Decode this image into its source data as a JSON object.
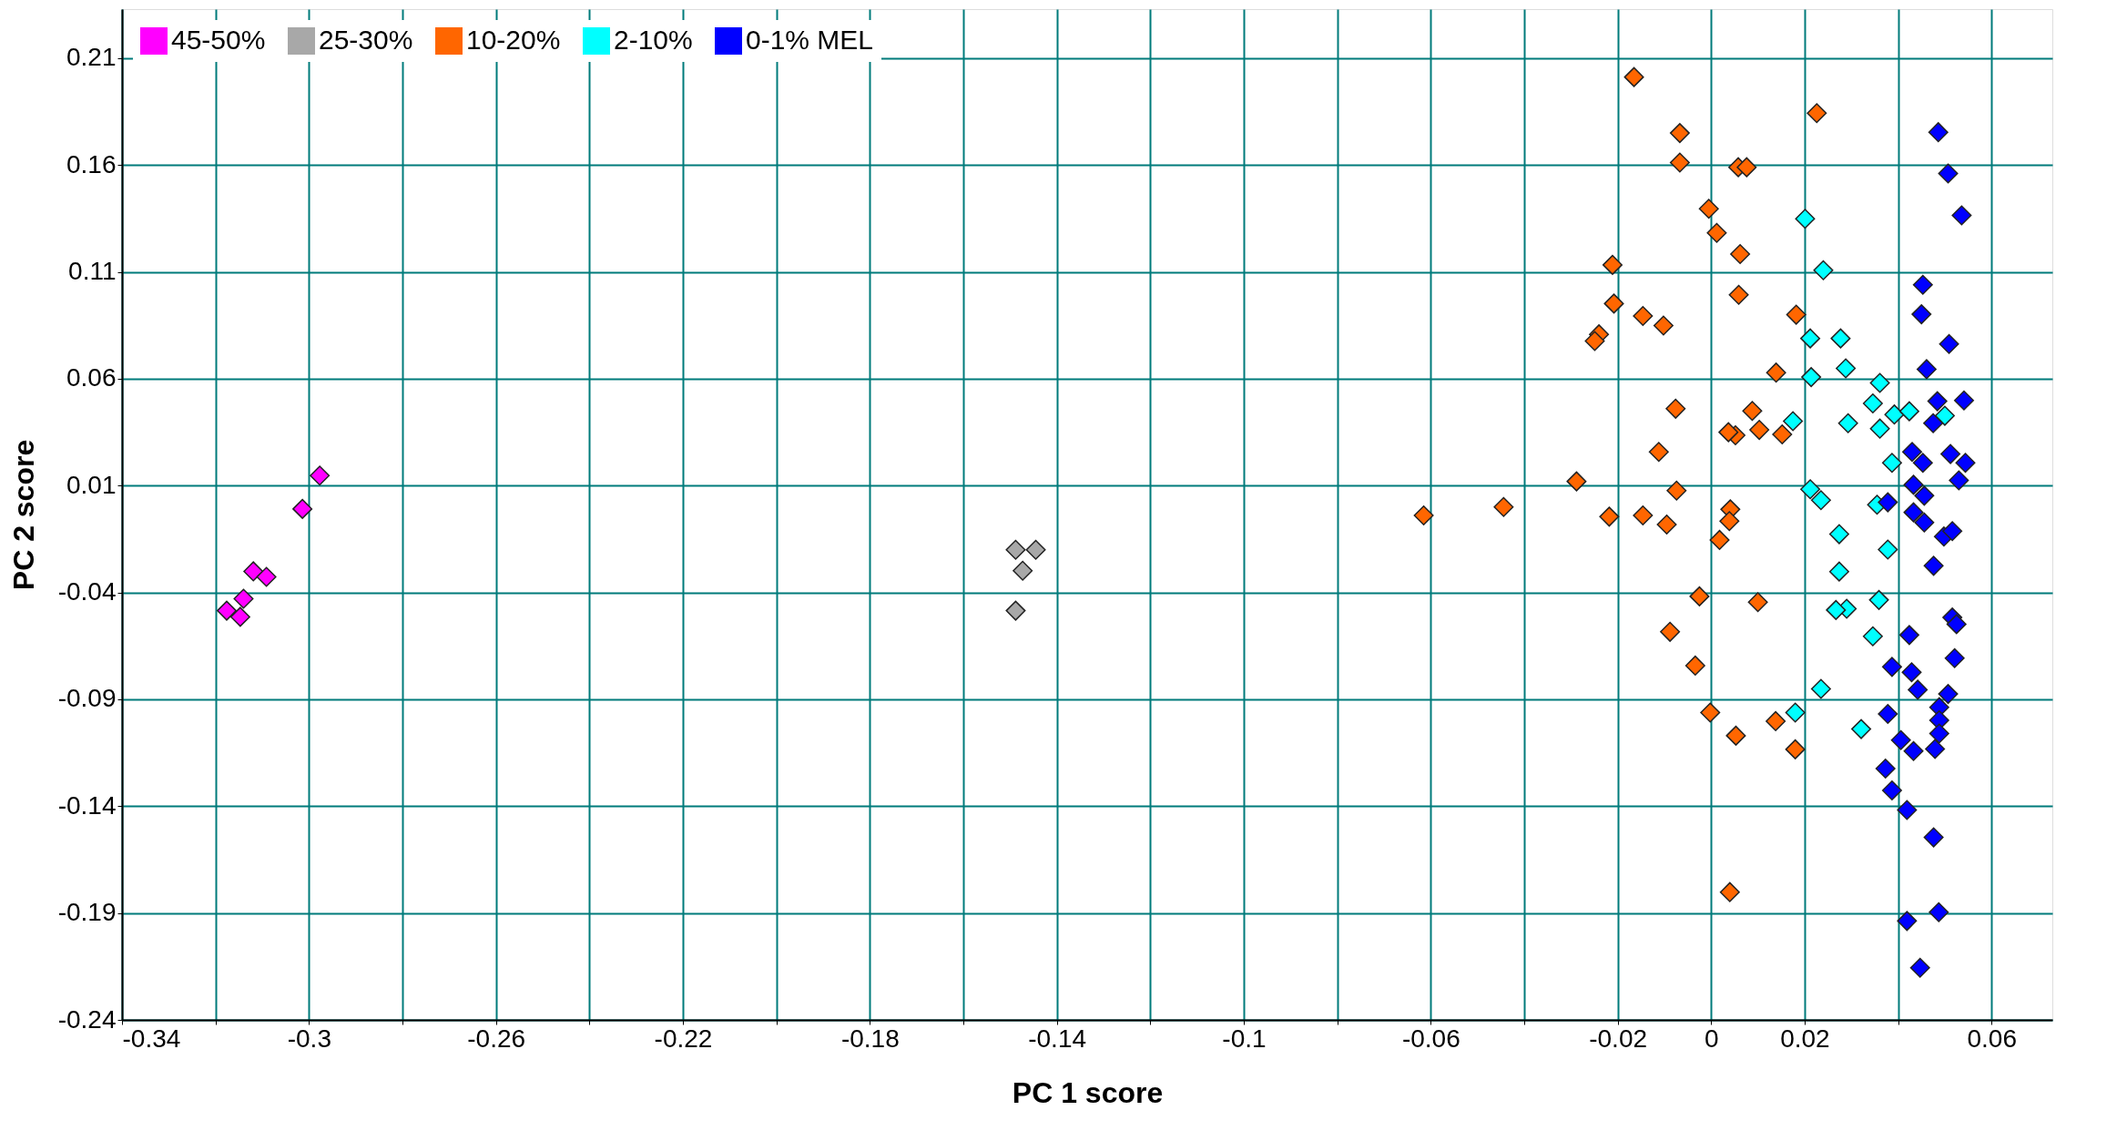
{
  "chart_data": {
    "type": "scatter",
    "xlabel": "PC 1 score",
    "ylabel": "PC 2 score",
    "xlim": [
      -0.34,
      0.073
    ],
    "ylim": [
      -0.24,
      0.233
    ],
    "xticks": [
      -0.34,
      {
        "value": -0.32,
        "label": null
      },
      -0.3,
      {
        "value": -0.28,
        "label": null
      },
      -0.26,
      {
        "value": -0.24,
        "label": null
      },
      -0.22,
      {
        "value": -0.2,
        "label": null
      },
      -0.18,
      {
        "value": -0.16,
        "label": null
      },
      -0.14,
      {
        "value": -0.12,
        "label": null
      },
      -0.1,
      {
        "value": -0.08,
        "label": null
      },
      -0.06,
      {
        "value": -0.04,
        "label": null
      },
      -0.02,
      0,
      0.02,
      {
        "value": 0.04,
        "label": null
      },
      0.06
    ],
    "yticks": [
      0.21,
      0.16,
      0.11,
      0.06,
      0.01,
      -0.04,
      -0.09,
      -0.14,
      -0.19,
      -0.24
    ],
    "grid": true,
    "legend": "top left",
    "marker": "diamond",
    "series": [
      {
        "name": "45-50%",
        "color": "#ff00ff",
        "x": [
          -0.2977,
          -0.3014,
          -0.3119,
          -0.3091,
          -0.314,
          -0.3176,
          -0.3147
        ],
        "values": [
          0.0147,
          -0.0009,
          -0.0301,
          -0.0327,
          -0.0429,
          -0.0485,
          -0.0514
        ]
      },
      {
        "name": "25-30%",
        "color": "#a8a8a8",
        "x": [
          -0.1488,
          -0.1445,
          -0.1473,
          -0.1488
        ],
        "values": [
          -0.02,
          -0.02,
          -0.0298,
          -0.0485
        ]
      },
      {
        "name": "10-20%",
        "color": "#ff6600",
        "x": [
          -0.0165,
          0.0226,
          -0.0067,
          -0.0067,
          0.0058,
          0.0076,
          -0.0005,
          0.0012,
          0.0062,
          -0.0211,
          0.0059,
          -0.0208,
          -0.0146,
          -0.0102,
          -0.024,
          -0.0249,
          0.0182,
          0.0139,
          -0.0076,
          0.0088,
          0.0103,
          0.0052,
          0.0037,
          0.0152,
          -0.0112,
          -0.0288,
          -0.0074,
          -0.0615,
          -0.0444,
          -0.0218,
          -0.0146,
          -0.0095,
          0.0041,
          0.0039,
          0.0018,
          -0.0025,
          0.01,
          -0.0088,
          -0.0034,
          -0.0002,
          0.0138,
          0.0053,
          0.018,
          0.004
        ],
        "values": [
          0.2012,
          0.1843,
          0.175,
          0.1612,
          0.159,
          0.159,
          0.1396,
          0.1283,
          0.1184,
          0.1133,
          0.0993,
          0.0952,
          0.0894,
          0.0849,
          0.0808,
          0.0777,
          0.09,
          0.0629,
          0.046,
          0.045,
          0.0361,
          0.0336,
          0.035,
          0.034,
          0.0258,
          0.012,
          0.0077,
          -0.0039,
          0.0,
          -0.0045,
          -0.0039,
          -0.0082,
          -0.0011,
          -0.0066,
          -0.0154,
          -0.0418,
          -0.0445,
          -0.0584,
          -0.0742,
          -0.0962,
          -0.1002,
          -0.107,
          -0.1134,
          -0.1802
        ]
      },
      {
        "name": "2-10%",
        "color": "#00ffff",
        "x": [
          0.0201,
          0.024,
          0.0212,
          0.0277,
          0.0214,
          0.0288,
          0.0361,
          0.0346,
          0.0392,
          0.0424,
          0.0361,
          0.0293,
          0.0175,
          0.05,
          0.0387,
          0.0212,
          0.0235,
          0.0355,
          0.0274,
          0.0378,
          0.0274,
          0.0359,
          0.029,
          0.0267,
          0.0346,
          0.0235,
          0.018,
          0.0321
        ],
        "values": [
          0.1349,
          0.1108,
          0.0789,
          0.0789,
          0.0608,
          0.0649,
          0.0581,
          0.0485,
          0.0433,
          0.0448,
          0.0367,
          0.0392,
          0.0402,
          0.0427,
          0.0207,
          0.0083,
          0.0032,
          0.0011,
          -0.0127,
          -0.0199,
          -0.0302,
          -0.0435,
          -0.0476,
          -0.0482,
          -0.0605,
          -0.0851,
          -0.0962,
          -0.1039
        ]
      },
      {
        "name": "0-1% MEL",
        "color": "#0000ff",
        "x": [
          0.0486,
          0.0507,
          0.0536,
          0.0453,
          0.045,
          0.0509,
          0.0461,
          0.0484,
          0.0541,
          0.0475,
          0.043,
          0.0453,
          0.0512,
          0.0544,
          0.053,
          0.0433,
          0.0456,
          0.0378,
          0.0433,
          0.0456,
          0.0498,
          0.0516,
          0.0476,
          0.0516,
          0.0525,
          0.0424,
          0.0521,
          0.0387,
          0.0429,
          0.0442,
          0.0507,
          0.0488,
          0.0378,
          0.0488,
          0.0488,
          0.0406,
          0.0433,
          0.0479,
          0.0373,
          0.0387,
          0.0419,
          0.0476,
          0.0419,
          0.0487,
          0.0447
        ],
        "values": [
          0.1754,
          0.1561,
          0.1365,
          0.104,
          0.0902,
          0.0763,
          0.0645,
          0.0495,
          0.0499,
          0.0392,
          0.0258,
          0.0207,
          0.0248,
          0.0207,
          0.0125,
          0.0104,
          0.0053,
          0.0022,
          -0.0025,
          -0.0072,
          -0.0138,
          -0.0113,
          -0.0275,
          -0.0517,
          -0.0548,
          -0.0599,
          -0.0707,
          -0.0748,
          -0.0773,
          -0.0855,
          -0.0875,
          -0.0937,
          -0.0968,
          -0.0998,
          -0.106,
          -0.1091,
          -0.1142,
          -0.1132,
          -0.1224,
          -0.1326,
          -0.1418,
          -0.1546,
          -0.1937,
          -0.1896,
          -0.2156
        ]
      }
    ]
  }
}
